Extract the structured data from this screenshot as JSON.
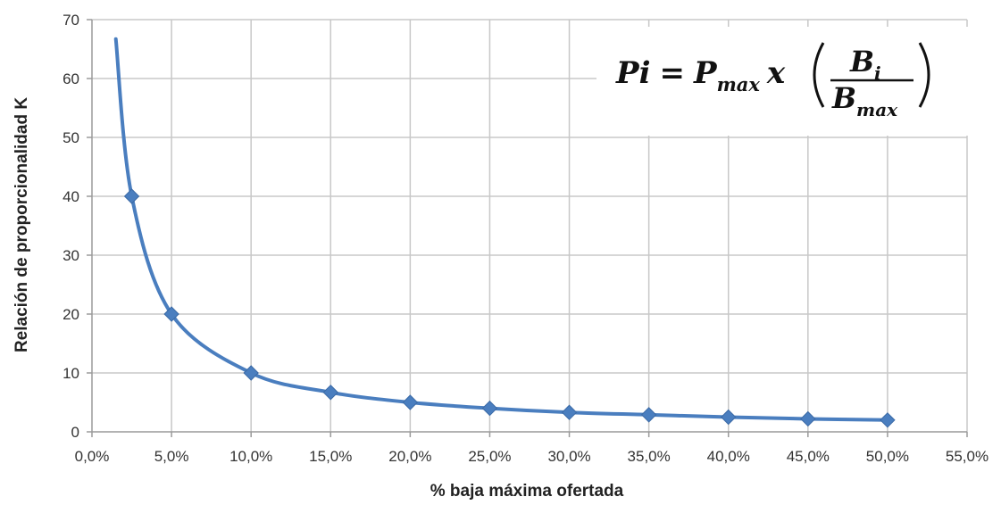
{
  "chart_data": {
    "type": "line",
    "title": "",
    "xlabel": "% baja máxima ofertada",
    "ylabel": "Relación de proporcionalidad K",
    "xlim": [
      0,
      55
    ],
    "ylim": [
      0,
      70
    ],
    "x_ticks": [
      "0,0%",
      "5,0%",
      "10,0%",
      "15,0%",
      "20,0%",
      "25,0%",
      "30,0%",
      "35,0%",
      "40,0%",
      "45,0%",
      "50,0%",
      "55,0%"
    ],
    "y_ticks": [
      "0",
      "10",
      "20",
      "30",
      "40",
      "50",
      "60",
      "70"
    ],
    "grid": true,
    "legend": "none",
    "series": [
      {
        "x": [
          1.5,
          2.5,
          5,
          10,
          15,
          20,
          25,
          30,
          35,
          40,
          45,
          50
        ],
        "y": [
          66.7,
          40,
          20,
          10,
          6.7,
          5,
          4,
          3.3,
          2.9,
          2.5,
          2.2,
          2
        ],
        "markers_at_x": [
          2.5,
          5,
          10,
          15,
          20,
          25,
          30,
          35,
          40,
          45,
          50
        ],
        "color": "#4a7ebf",
        "marker": "diamond"
      }
    ],
    "annotations": {
      "formula": {
        "lhs": "Pi",
        "equals": "=",
        "p": "P",
        "p_sub": "max",
        "times": "x",
        "num": "B",
        "num_sub": "i",
        "den": "B",
        "den_sub": "max"
      }
    }
  }
}
